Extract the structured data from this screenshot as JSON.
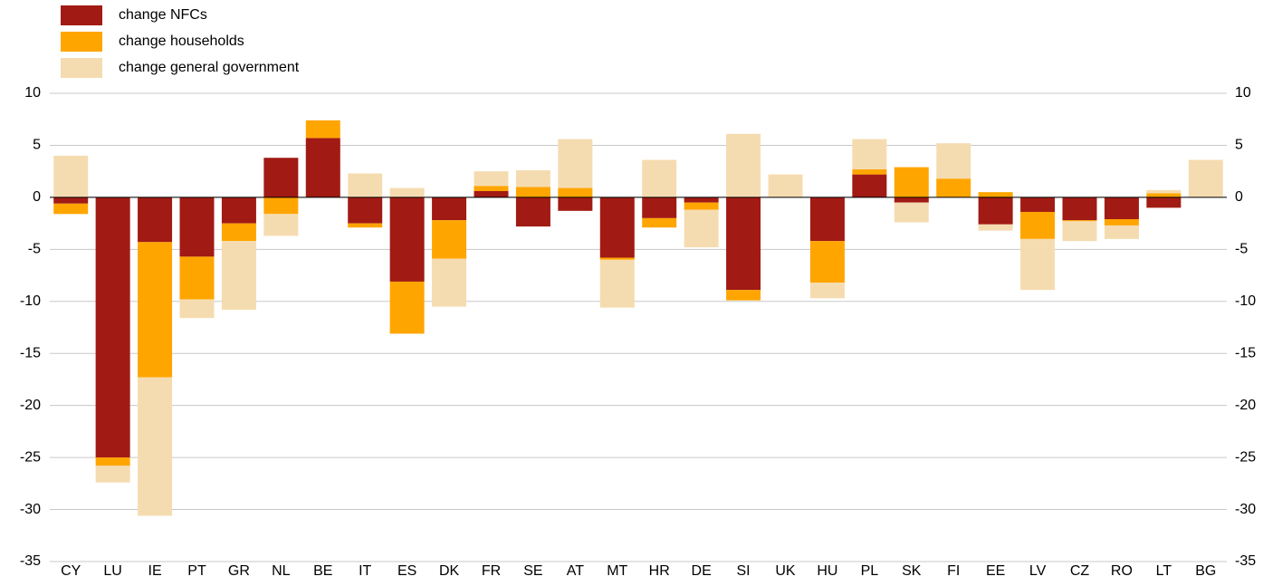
{
  "chart_data": {
    "type": "stacked-bar",
    "categories": [
      "CY",
      "LU",
      "IE",
      "PT",
      "GR",
      "NL",
      "BE",
      "IT",
      "ES",
      "DK",
      "FR",
      "SE",
      "AT",
      "MT",
      "HR",
      "DE",
      "SI",
      "UK",
      "HU",
      "PL",
      "SK",
      "FI",
      "EE",
      "LV",
      "CZ",
      "RO",
      "LT",
      "BG"
    ],
    "series": [
      {
        "name": "change NFCs",
        "color": "#a11a14",
        "values": [
          -0.6,
          -25.0,
          -4.3,
          -5.7,
          -2.5,
          3.8,
          5.7,
          -2.5,
          -8.1,
          -2.2,
          0.6,
          -2.8,
          -1.3,
          -5.8,
          -2.0,
          -0.5,
          -8.9,
          0,
          -4.2,
          2.2,
          -0.5,
          0,
          -2.6,
          -1.4,
          -2.2,
          -2.1,
          -1.0,
          0
        ]
      },
      {
        "name": "change households",
        "color": "#ffa500",
        "values": [
          -1.0,
          -0.8,
          -13.0,
          -4.1,
          -1.7,
          -1.6,
          1.7,
          -0.4,
          -5.0,
          -3.7,
          0.5,
          1.0,
          0.9,
          -0.2,
          -0.9,
          -0.7,
          -1.0,
          0,
          -4.0,
          0.5,
          2.9,
          1.8,
          0.5,
          -2.6,
          -0.1,
          -0.6,
          0.4,
          0
        ]
      },
      {
        "name": "change general government",
        "color": "#f5dcb0",
        "values": [
          4.0,
          -1.6,
          -13.3,
          -1.8,
          -6.6,
          -2.1,
          0,
          2.3,
          0.9,
          -4.6,
          1.4,
          1.6,
          4.7,
          -4.6,
          3.6,
          -3.6,
          6.1,
          2.2,
          -1.5,
          2.9,
          -1.9,
          3.4,
          -0.6,
          -4.9,
          -1.9,
          -1.3,
          0.3,
          3.6
        ]
      }
    ],
    "ylim": [
      -35,
      10
    ],
    "yticks": [
      10,
      5,
      0,
      -5,
      -10,
      -15,
      -20,
      -25,
      -30,
      -35
    ],
    "grid": true
  }
}
